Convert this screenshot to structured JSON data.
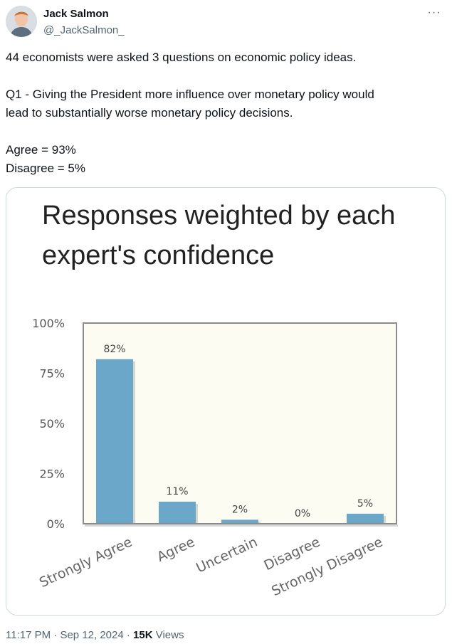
{
  "author": {
    "name": "Jack Salmon",
    "handle": "@_JackSalmon_",
    "avatar_icon": "profile-photo"
  },
  "more_icon": "ellipsis-icon",
  "tweet": {
    "line1": "44 economists were asked 3 questions on economic policy ideas.",
    "line2": "Q1 - Giving the President more influence over monetary policy would",
    "line3": "lead to substantially worse monetary policy decisions.",
    "line4": "Agree = 93%",
    "line5": "Disagree = 5%"
  },
  "chart_data": {
    "type": "bar",
    "title_line1": "Responses weighted by each",
    "title_line2": "expert's confidence",
    "categories": [
      "Strongly Agree",
      "Agree",
      "Uncertain",
      "Disagree",
      "Strongly Disagree"
    ],
    "values": [
      82,
      11,
      2,
      0,
      5
    ],
    "data_labels": [
      "82%",
      "11%",
      "2%",
      "0%",
      "5%"
    ],
    "yticks": [
      "0%",
      "25%",
      "50%",
      "75%",
      "100%"
    ],
    "ylim": [
      0,
      100
    ],
    "grid": false,
    "bar_color": "#6aa7c8",
    "plot_background": "#fdfcf2"
  },
  "footer": {
    "time": "11:17 PM",
    "sep1": " · ",
    "date": "Sep 12, 2024",
    "sep2": " · ",
    "views_count": "15K",
    "views_label": " Views"
  }
}
